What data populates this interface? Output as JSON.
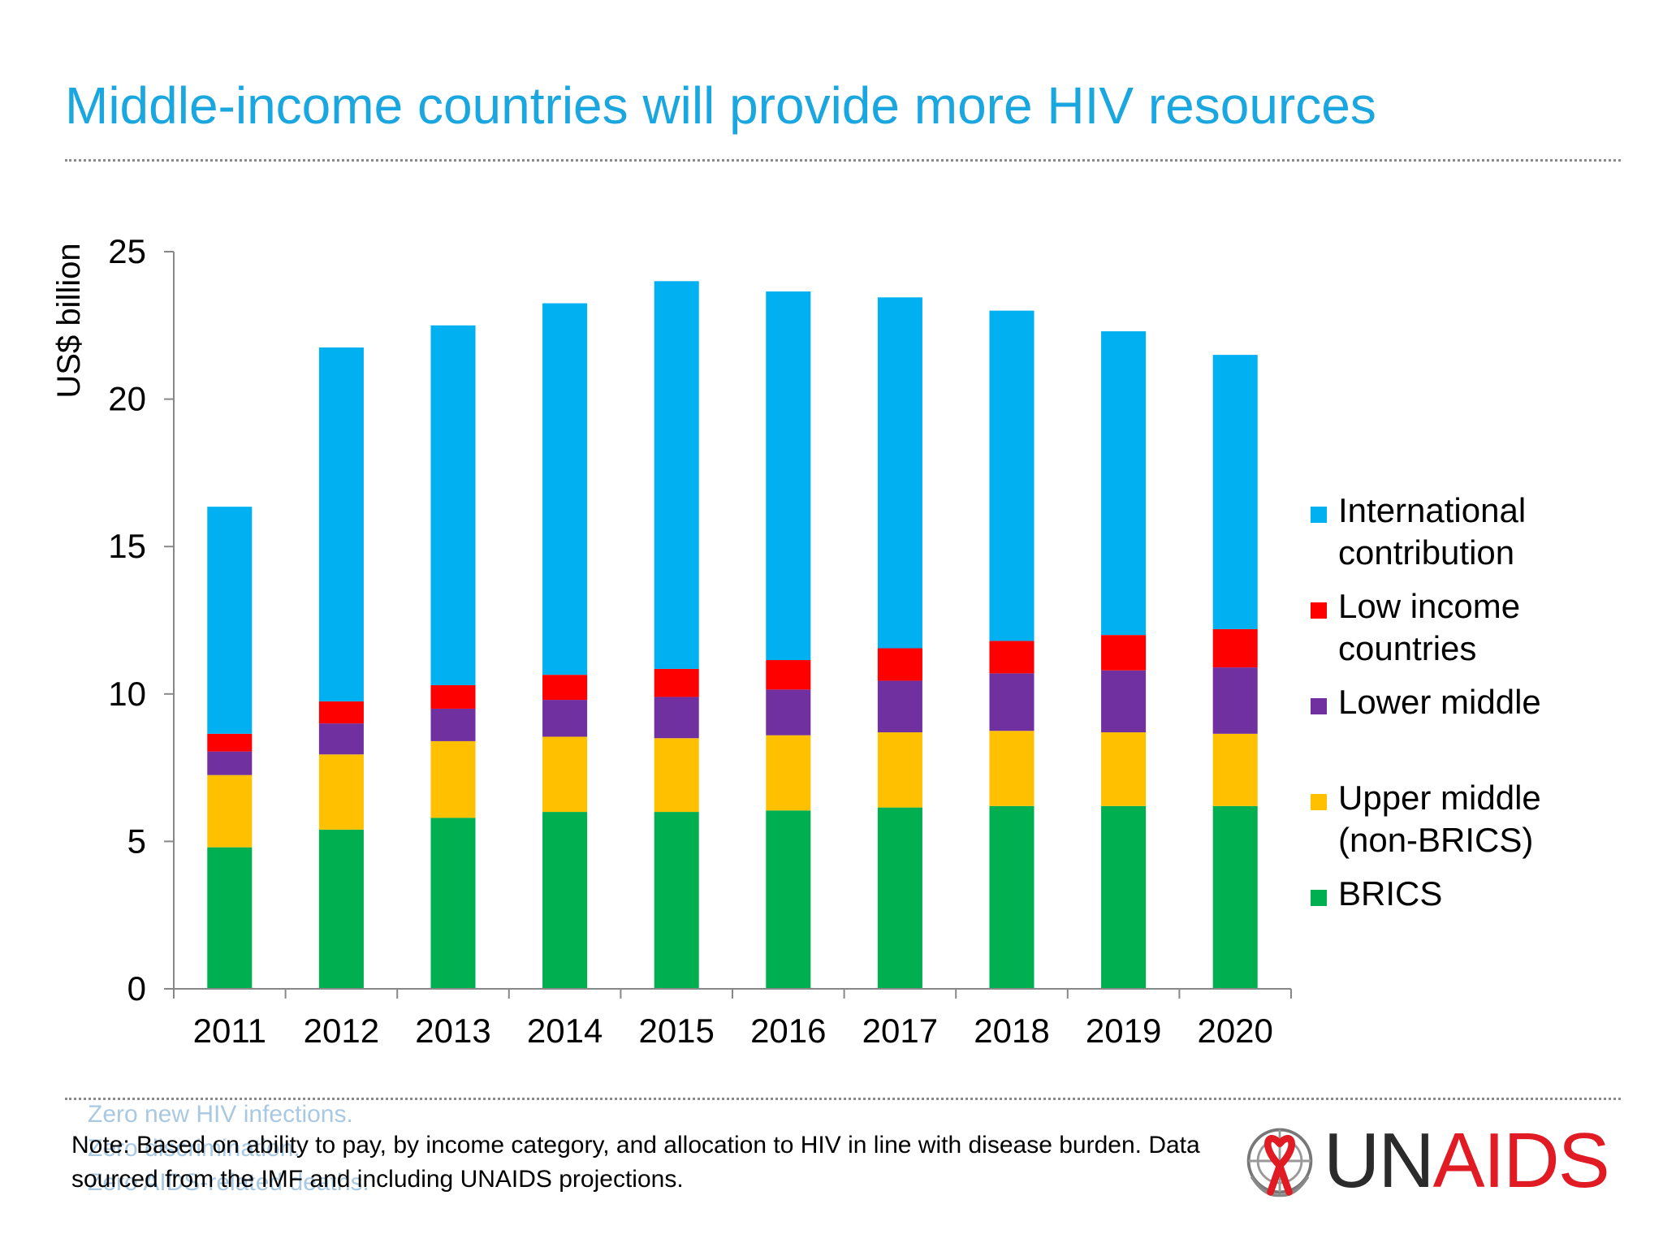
{
  "title": "Middle-income countries will provide more HIV resources",
  "colors": {
    "title": "#1aa6df",
    "international": "#00b0f0",
    "low_income": "#ff0000",
    "lower_middle": "#7030a0",
    "upper_middle": "#ffc000",
    "brics": "#00b050",
    "logo_text_left": "#2b2b2b",
    "logo_text_right": "#e11b24"
  },
  "chart_data": {
    "type": "bar",
    "stacked": true,
    "ylabel": "US$ billion",
    "xlabel": "",
    "ylim": [
      0,
      25
    ],
    "yticks": [
      "0",
      "5",
      "10",
      "15",
      "20",
      "25"
    ],
    "categories": [
      "2011",
      "2012",
      "2013",
      "2014",
      "2015",
      "2016",
      "2017",
      "2018",
      "2019",
      "2020"
    ],
    "legend_position": "right",
    "grid": false,
    "series": [
      {
        "name": "BRICS",
        "color": "#00b050",
        "values": [
          4.8,
          5.4,
          5.8,
          6.0,
          6.0,
          6.05,
          6.15,
          6.2,
          6.2,
          6.2
        ]
      },
      {
        "name": "Upper middle (non-BRICS)",
        "color": "#ffc000",
        "values": [
          2.45,
          2.55,
          2.6,
          2.55,
          2.5,
          2.55,
          2.55,
          2.55,
          2.5,
          2.45
        ]
      },
      {
        "name": "Lower middle",
        "color": "#7030a0",
        "values": [
          0.8,
          1.05,
          1.1,
          1.25,
          1.4,
          1.55,
          1.75,
          1.95,
          2.1,
          2.25
        ]
      },
      {
        "name": "Low income countries",
        "color": "#ff0000",
        "values": [
          0.6,
          0.75,
          0.8,
          0.85,
          0.95,
          1.0,
          1.1,
          1.1,
          1.2,
          1.3
        ]
      },
      {
        "name": "International contribution",
        "color": "#00b0f0",
        "values": [
          7.7,
          12.0,
          12.2,
          12.6,
          13.15,
          12.5,
          11.9,
          11.2,
          10.3,
          9.3
        ]
      }
    ],
    "legend": [
      {
        "lines": [
          "International",
          "contribution"
        ],
        "color": "#00b0f0"
      },
      {
        "lines": [
          "Low income",
          "countries"
        ],
        "color": "#ff0000"
      },
      {
        "lines": [
          "Lower middle"
        ],
        "color": "#7030a0"
      },
      {
        "lines": [
          "Upper middle",
          "(non-BRICS)"
        ],
        "color": "#ffc000"
      },
      {
        "lines": [
          "BRICS"
        ],
        "color": "#00b050"
      }
    ]
  },
  "tagline": [
    "Zero new HIV infections.",
    "Zero discrimination.",
    "Zero AIDS-related deaths."
  ],
  "note": "Note: Based on ability to pay, by income category, and allocation to HIV in line with disease burden. Data sourced from the IMF and including UNAIDS projections.",
  "logo": {
    "text_left": "UN",
    "text_right": "AIDS",
    "mark": "un-emblem-red-ribbon-icon"
  }
}
